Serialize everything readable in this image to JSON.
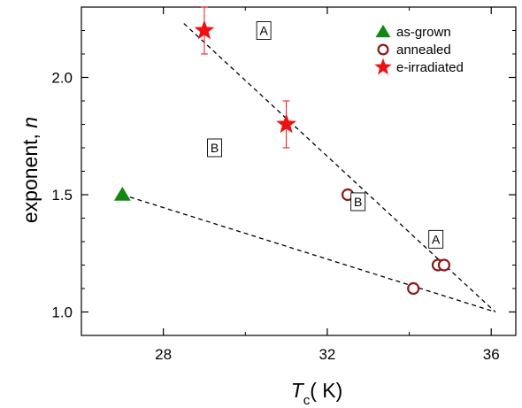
{
  "chart_data": {
    "type": "scatter",
    "xlabel_symbol": "T",
    "xlabel_subscript": "c",
    "xlabel_unit": "( K)",
    "ylabel_text": "exponent, ",
    "ylabel_symbol": "n",
    "xlim": [
      26,
      36.6
    ],
    "ylim": [
      0.9,
      2.3
    ],
    "xticks": [
      28,
      32,
      36
    ],
    "xtick_labels": [
      "28",
      "32",
      "36"
    ],
    "yticks": [
      1.0,
      1.5,
      2.0
    ],
    "ytick_labels": [
      "1.0",
      "1.5",
      "2.0"
    ],
    "legend_position": "top-right",
    "series": [
      {
        "name": "as-grown",
        "marker": "triangle",
        "color": "#118811",
        "points": [
          {
            "x": 27.0,
            "y": 1.5
          }
        ]
      },
      {
        "name": "annealed",
        "marker": "open-circle",
        "color": "#8b1a1a",
        "points": [
          {
            "x": 32.5,
            "y": 1.5
          },
          {
            "x": 34.1,
            "y": 1.1
          },
          {
            "x": 34.7,
            "y": 1.2
          },
          {
            "x": 34.85,
            "y": 1.2
          }
        ]
      },
      {
        "name": "e-irradiated",
        "marker": "star",
        "color": "#ee1111",
        "points": [
          {
            "x": 29.0,
            "y": 2.2,
            "err": 0.1
          },
          {
            "x": 31.0,
            "y": 1.8,
            "err": 0.1
          }
        ]
      }
    ],
    "dashed_lines": [
      {
        "from": {
          "x": 28.5,
          "y": 2.23
        },
        "to": {
          "x": 36.1,
          "y": 1.0
        }
      },
      {
        "from": {
          "x": 27.0,
          "y": 1.5
        },
        "to": {
          "x": 36.1,
          "y": 1.0
        }
      }
    ],
    "annotations": [
      {
        "text": "A",
        "x": 30.45,
        "y": 2.2
      },
      {
        "text": "B",
        "x": 29.25,
        "y": 1.7
      },
      {
        "text": "B",
        "x": 32.75,
        "y": 1.47
      },
      {
        "text": "A",
        "x": 34.65,
        "y": 1.31
      }
    ]
  }
}
